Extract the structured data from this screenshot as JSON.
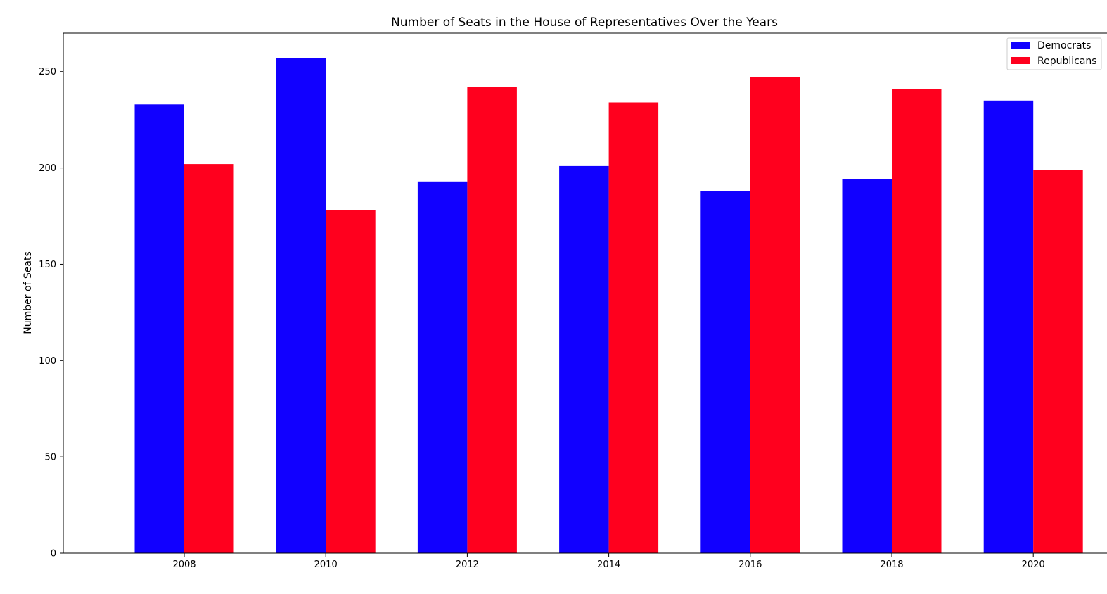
{
  "chart_data": {
    "type": "bar",
    "title": "Number of Seats in the House of Representatives Over the Years",
    "xlabel": "",
    "ylabel": "Number of Seats",
    "categories": [
      "2008",
      "2010",
      "2012",
      "2014",
      "2016",
      "2018",
      "2020"
    ],
    "series": [
      {
        "name": "Democrats",
        "color": "#1100ff",
        "values": [
          233,
          257,
          193,
          201,
          188,
          194,
          235
        ]
      },
      {
        "name": "Republicans",
        "color": "#ff001e",
        "values": [
          202,
          178,
          242,
          234,
          247,
          241,
          199
        ]
      }
    ],
    "ylim": [
      0,
      270
    ],
    "yticks": [
      0,
      50,
      100,
      150,
      200,
      250
    ],
    "grid": false,
    "legend_position": "top-right"
  }
}
